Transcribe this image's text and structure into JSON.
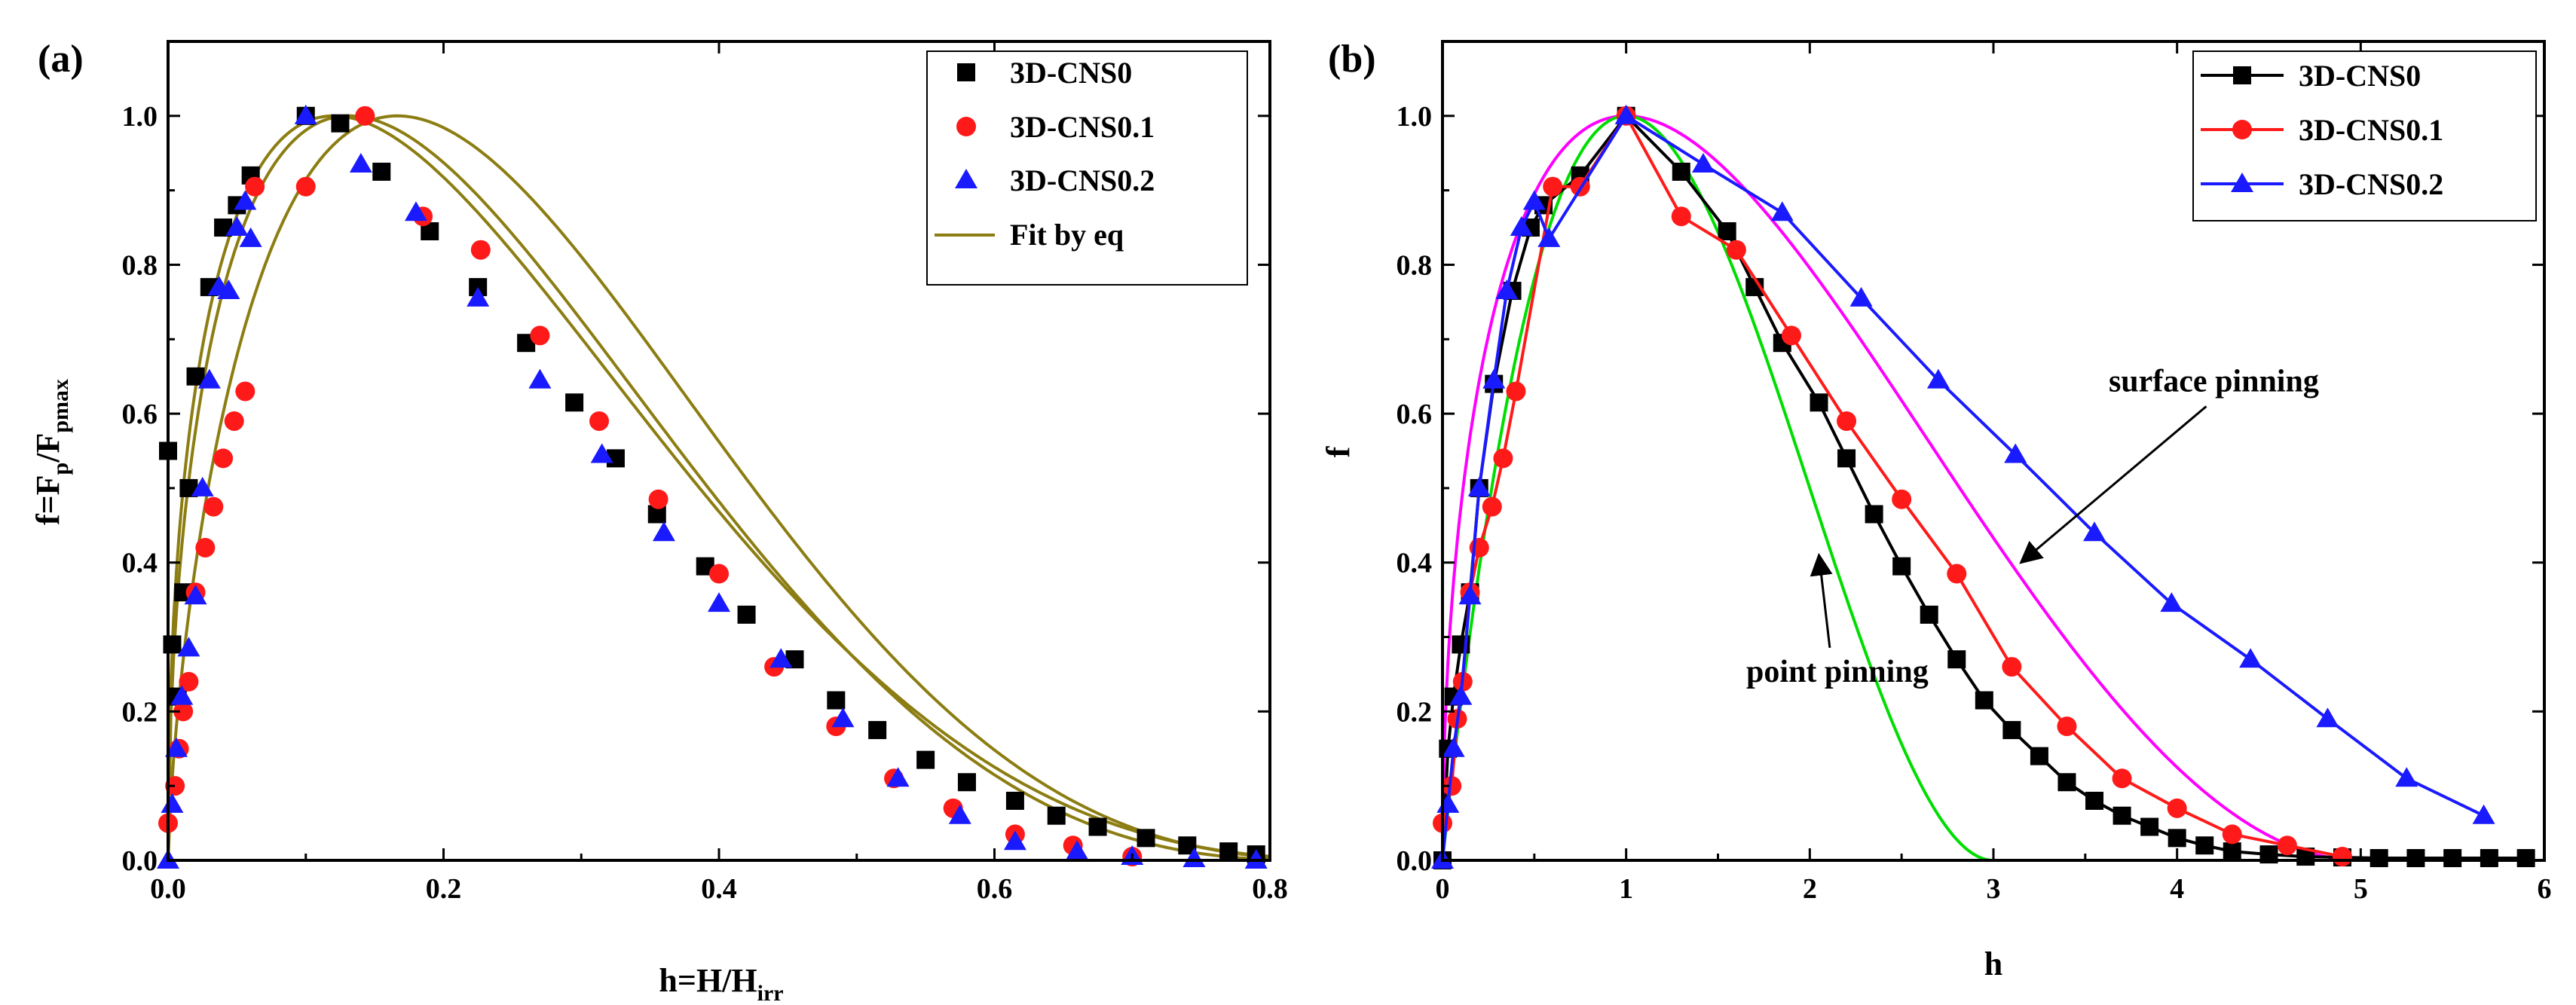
{
  "chart_data": [
    {
      "panel_label": "(a)",
      "type": "scatter",
      "xlabel": "h=H/H",
      "xlabel_sub": "irr",
      "ylabel": "f=F",
      "ylabel_sub1": "p",
      "ylabel_mid": "/F",
      "ylabel_sub2": "pmax",
      "xlim": [
        0,
        0.8
      ],
      "ylim": [
        0,
        1.1
      ],
      "xticks": [
        0.0,
        0.2,
        0.4,
        0.6,
        0.8
      ],
      "xtick_labels": [
        "0.0",
        "0.2",
        "0.4",
        "0.6",
        "0.8"
      ],
      "yticks": [
        0.0,
        0.2,
        0.4,
        0.6,
        0.8,
        1.0
      ],
      "ytick_labels": [
        "0.0",
        "0.2",
        "0.4",
        "0.6",
        "0.8",
        "1.0"
      ],
      "legend_position": "top-right",
      "series": [
        {
          "name": "3D-CNS0",
          "marker": "square",
          "color": "#000000",
          "x": [
            0.0,
            0.003,
            0.007,
            0.011,
            0.015,
            0.02,
            0.03,
            0.04,
            0.05,
            0.06,
            0.1,
            0.125,
            0.155,
            0.19,
            0.225,
            0.26,
            0.295,
            0.325,
            0.355,
            0.39,
            0.42,
            0.455,
            0.485,
            0.515,
            0.55,
            0.58,
            0.615,
            0.645,
            0.675,
            0.71,
            0.74,
            0.77,
            0.79
          ],
          "y": [
            0.55,
            0.29,
            0.22,
            0.36,
            0.5,
            0.65,
            0.77,
            0.85,
            0.88,
            0.92,
            1.0,
            0.99,
            0.925,
            0.845,
            0.77,
            0.695,
            0.615,
            0.54,
            0.465,
            0.395,
            0.33,
            0.27,
            0.215,
            0.175,
            0.135,
            0.105,
            0.08,
            0.06,
            0.045,
            0.03,
            0.02,
            0.012,
            0.008
          ]
        },
        {
          "name": "3D-CNS0.1",
          "marker": "circle",
          "color": "#ff1a1a",
          "x": [
            0.0,
            0.005,
            0.008,
            0.011,
            0.015,
            0.02,
            0.027,
            0.033,
            0.04,
            0.048,
            0.056,
            0.063,
            0.1,
            0.143,
            0.185,
            0.227,
            0.27,
            0.313,
            0.356,
            0.4,
            0.44,
            0.485,
            0.527,
            0.57,
            0.615,
            0.657,
            0.7
          ],
          "y": [
            0.05,
            0.1,
            0.15,
            0.2,
            0.24,
            0.36,
            0.42,
            0.475,
            0.54,
            0.59,
            0.63,
            0.905,
            0.905,
            1.0,
            0.865,
            0.82,
            0.705,
            0.59,
            0.485,
            0.385,
            0.26,
            0.18,
            0.11,
            0.07,
            0.035,
            0.02,
            0.005
          ]
        },
        {
          "name": "3D-CNS0.2",
          "marker": "triangle",
          "color": "#1a1aff",
          "x": [
            0.0,
            0.003,
            0.006,
            0.01,
            0.015,
            0.02,
            0.025,
            0.03,
            0.037,
            0.044,
            0.05,
            0.056,
            0.06,
            0.1,
            0.14,
            0.18,
            0.225,
            0.27,
            0.315,
            0.36,
            0.4,
            0.445,
            0.49,
            0.53,
            0.575,
            0.615,
            0.66,
            0.7,
            0.745,
            0.79
          ],
          "y": [
            0.0,
            0.075,
            0.15,
            0.22,
            0.285,
            0.355,
            0.5,
            0.645,
            0.77,
            0.765,
            0.85,
            0.885,
            0.835,
            1.0,
            0.935,
            0.87,
            0.755,
            0.645,
            0.545,
            0.44,
            0.345,
            0.27,
            0.19,
            0.11,
            0.06,
            0.025,
            0.012,
            0.005,
            0.002,
            0.0
          ]
        }
      ],
      "fit_name": "Fit by eq",
      "fit_color": "#8c7d12",
      "fit_curves": [
        {
          "p": 0.45,
          "q": 2.9,
          "hmax": 0.895
        },
        {
          "p": 0.5,
          "q": 2.7,
          "hmax": 0.84
        },
        {
          "p": 0.7,
          "q": 3.0,
          "hmax": 0.88
        }
      ]
    },
    {
      "panel_label": "(b)",
      "type": "line",
      "xlabel": "h",
      "ylabel": "f",
      "xlim": [
        0,
        6
      ],
      "ylim": [
        0,
        1.1
      ],
      "xticks": [
        0,
        1,
        2,
        3,
        4,
        5,
        6
      ],
      "xtick_labels": [
        "0",
        "1",
        "2",
        "3",
        "4",
        "5",
        "6"
      ],
      "yticks": [
        0.0,
        0.2,
        0.4,
        0.6,
        0.8,
        1.0
      ],
      "ytick_labels": [
        "0.0",
        "0.2",
        "0.4",
        "0.6",
        "0.8",
        "1.0"
      ],
      "legend_position": "top-right",
      "series": [
        {
          "name": "3D-CNS0",
          "marker": "square",
          "color": "#000000",
          "x": [
            0.0,
            0.03,
            0.06,
            0.1,
            0.15,
            0.2,
            0.28,
            0.38,
            0.48,
            0.55,
            0.75,
            1.0,
            1.3,
            1.55,
            1.7,
            1.85,
            2.05,
            2.2,
            2.35,
            2.5,
            2.65,
            2.8,
            2.95,
            3.1,
            3.25,
            3.4,
            3.55,
            3.7,
            3.85,
            4.0,
            4.15,
            4.3,
            4.5,
            4.7,
            4.9,
            5.1,
            5.3,
            5.5,
            5.7,
            5.9
          ],
          "y": [
            0.0,
            0.15,
            0.22,
            0.29,
            0.36,
            0.5,
            0.64,
            0.765,
            0.85,
            0.88,
            0.92,
            1.0,
            0.925,
            0.845,
            0.77,
            0.695,
            0.615,
            0.54,
            0.465,
            0.395,
            0.33,
            0.27,
            0.215,
            0.175,
            0.14,
            0.105,
            0.08,
            0.06,
            0.045,
            0.03,
            0.02,
            0.012,
            0.008,
            0.005,
            0.004,
            0.003,
            0.003,
            0.003,
            0.003,
            0.003
          ]
        },
        {
          "name": "3D-CNS0.1",
          "marker": "circle",
          "color": "#ff1a1a",
          "x": [
            0.0,
            0.05,
            0.08,
            0.11,
            0.15,
            0.2,
            0.27,
            0.33,
            0.4,
            0.6,
            0.75,
            1.0,
            1.3,
            1.6,
            1.9,
            2.2,
            2.5,
            2.8,
            3.1,
            3.4,
            3.7,
            4.0,
            4.3,
            4.6,
            4.9
          ],
          "y": [
            0.05,
            0.1,
            0.19,
            0.24,
            0.36,
            0.42,
            0.475,
            0.54,
            0.63,
            0.905,
            0.905,
            1.0,
            0.865,
            0.82,
            0.705,
            0.59,
            0.485,
            0.385,
            0.26,
            0.18,
            0.11,
            0.07,
            0.035,
            0.02,
            0.005
          ]
        },
        {
          "name": "3D-CNS0.2",
          "marker": "triangle",
          "color": "#1a1aff",
          "x": [
            0.0,
            0.03,
            0.06,
            0.1,
            0.15,
            0.2,
            0.28,
            0.35,
            0.43,
            0.5,
            0.58,
            1.0,
            1.42,
            1.85,
            2.28,
            2.7,
            3.12,
            3.55,
            3.97,
            4.4,
            4.82,
            5.25,
            5.67
          ],
          "y": [
            0.0,
            0.075,
            0.15,
            0.22,
            0.355,
            0.5,
            0.645,
            0.765,
            0.85,
            0.885,
            0.835,
            1.0,
            0.935,
            0.87,
            0.755,
            0.645,
            0.545,
            0.44,
            0.345,
            0.27,
            0.19,
            0.11,
            0.06
          ]
        }
      ],
      "model_curves": [
        {
          "name": "surface pinning",
          "color": "#ff00ff",
          "p": 0.5,
          "q": 2.0
        },
        {
          "name": "point pinning",
          "color": "#00dd00",
          "p": 1.0,
          "q": 2.0
        }
      ],
      "annotations": [
        {
          "text": "surface pinning",
          "x": 4.2,
          "y": 0.63,
          "arrow_to": [
            3.15,
            0.4
          ]
        },
        {
          "text": "point pinning",
          "x": 2.15,
          "y": 0.24,
          "arrow_to": [
            2.05,
            0.41
          ]
        }
      ]
    }
  ]
}
